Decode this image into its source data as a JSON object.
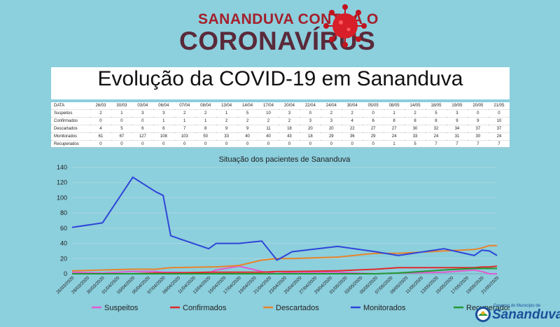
{
  "header": {
    "top_line": "SANANDUVA CONTRA O",
    "main_line": "CORONAVÍRUS",
    "title": "Evolução da COVID-19 em Sananduva"
  },
  "table": {
    "corner": "DATA",
    "dates": [
      "26/03",
      "30/03",
      "03/04",
      "06/04",
      "07/04",
      "08/04",
      "13/04",
      "14/04",
      "17/04",
      "20/04",
      "22/04",
      "24/04",
      "30/04",
      "05/05",
      "08/05",
      "14/05",
      "18/05",
      "19/05",
      "20/05",
      "21/05"
    ],
    "rows": [
      {
        "label": "Suspeitos",
        "values": [
          2,
          1,
          3,
          3,
          2,
          2,
          1,
          5,
          10,
          3,
          0,
          2,
          2,
          0,
          1,
          2,
          5,
          3,
          0,
          0
        ]
      },
      {
        "label": "Confirmados",
        "values": [
          0,
          0,
          0,
          1,
          1,
          1,
          2,
          2,
          2,
          2,
          3,
          3,
          4,
          6,
          8,
          8,
          8,
          9,
          9,
          10
        ]
      },
      {
        "label": "Descartados",
        "values": [
          4,
          5,
          6,
          6,
          7,
          8,
          9,
          9,
          11,
          18,
          20,
          20,
          22,
          27,
          27,
          30,
          32,
          34,
          37,
          37
        ]
      },
      {
        "label": "Monitorados",
        "values": [
          61,
          67,
          127,
          108,
          103,
          50,
          33,
          40,
          40,
          43,
          18,
          29,
          36,
          29,
          24,
          33,
          24,
          31,
          30,
          24
        ]
      },
      {
        "label": "Recuperados",
        "values": [
          0,
          0,
          0,
          0,
          0,
          0,
          0,
          0,
          0,
          0,
          0,
          0,
          0,
          0,
          1,
          5,
          7,
          7,
          7,
          7
        ]
      }
    ]
  },
  "chart_data": {
    "type": "line",
    "title": "Situação dos pacientes de Sananduva",
    "xlabel": "",
    "ylabel": "",
    "ylim": [
      0,
      140
    ],
    "yticks": [
      0,
      20,
      40,
      60,
      80,
      100,
      120,
      140
    ],
    "x_range": [
      "26/03/2020",
      "21/05/2020"
    ],
    "x_ticks": [
      "26/03/2020",
      "28/03/2020",
      "30/03/2020",
      "01/04/2020",
      "03/04/2020",
      "05/04/2020",
      "07/04/2020",
      "09/04/2020",
      "11/04/2020",
      "13/04/2020",
      "15/04/2020",
      "17/04/2020",
      "19/04/2020",
      "21/04/2020",
      "23/04/2020",
      "25/04/2020",
      "27/04/2020",
      "29/04/2020",
      "01/05/2020",
      "03/05/2020",
      "05/05/2020",
      "07/05/2020",
      "09/05/2020",
      "11/05/2020",
      "13/05/2020",
      "15/05/2020",
      "17/05/2020",
      "19/05/2020",
      "21/05/2020"
    ],
    "grid": true,
    "legend_position": "bottom",
    "series": [
      {
        "name": "Suspeitos",
        "color": "#e05bd0",
        "points": [
          [
            "26/03/2020",
            2
          ],
          [
            "30/03/2020",
            1
          ],
          [
            "03/04/2020",
            3
          ],
          [
            "06/04/2020",
            3
          ],
          [
            "07/04/2020",
            2
          ],
          [
            "08/04/2020",
            2
          ],
          [
            "13/04/2020",
            1
          ],
          [
            "14/04/2020",
            5
          ],
          [
            "17/04/2020",
            10
          ],
          [
            "20/04/2020",
            3
          ],
          [
            "22/04/2020",
            0
          ],
          [
            "24/04/2020",
            2
          ],
          [
            "30/04/2020",
            2
          ],
          [
            "05/05/2020",
            0
          ],
          [
            "08/05/2020",
            1
          ],
          [
            "14/05/2020",
            2
          ],
          [
            "18/05/2020",
            5
          ],
          [
            "19/05/2020",
            3
          ],
          [
            "20/05/2020",
            0
          ],
          [
            "21/05/2020",
            0
          ]
        ]
      },
      {
        "name": "Confirmados",
        "color": "#e02a2a",
        "points": [
          [
            "26/03/2020",
            0
          ],
          [
            "30/03/2020",
            0
          ],
          [
            "03/04/2020",
            0
          ],
          [
            "06/04/2020",
            1
          ],
          [
            "07/04/2020",
            1
          ],
          [
            "08/04/2020",
            1
          ],
          [
            "13/04/2020",
            2
          ],
          [
            "14/04/2020",
            2
          ],
          [
            "17/04/2020",
            2
          ],
          [
            "20/04/2020",
            2
          ],
          [
            "22/04/2020",
            3
          ],
          [
            "24/04/2020",
            3
          ],
          [
            "30/04/2020",
            4
          ],
          [
            "05/05/2020",
            6
          ],
          [
            "08/05/2020",
            8
          ],
          [
            "14/05/2020",
            8
          ],
          [
            "18/05/2020",
            8
          ],
          [
            "19/05/2020",
            9
          ],
          [
            "20/05/2020",
            9
          ],
          [
            "21/05/2020",
            10
          ]
        ]
      },
      {
        "name": "Descartados",
        "color": "#e8842a",
        "points": [
          [
            "26/03/2020",
            4
          ],
          [
            "30/03/2020",
            5
          ],
          [
            "03/04/2020",
            6
          ],
          [
            "06/04/2020",
            6
          ],
          [
            "07/04/2020",
            7
          ],
          [
            "08/04/2020",
            8
          ],
          [
            "13/04/2020",
            9
          ],
          [
            "14/04/2020",
            9
          ],
          [
            "17/04/2020",
            11
          ],
          [
            "20/04/2020",
            18
          ],
          [
            "22/04/2020",
            20
          ],
          [
            "24/04/2020",
            20
          ],
          [
            "30/04/2020",
            22
          ],
          [
            "05/05/2020",
            27
          ],
          [
            "08/05/2020",
            27
          ],
          [
            "14/05/2020",
            30
          ],
          [
            "18/05/2020",
            32
          ],
          [
            "19/05/2020",
            34
          ],
          [
            "20/05/2020",
            37
          ],
          [
            "21/05/2020",
            37
          ]
        ]
      },
      {
        "name": "Monitorados",
        "color": "#2f45d8",
        "points": [
          [
            "26/03/2020",
            61
          ],
          [
            "30/03/2020",
            67
          ],
          [
            "03/04/2020",
            127
          ],
          [
            "06/04/2020",
            108
          ],
          [
            "07/04/2020",
            103
          ],
          [
            "08/04/2020",
            50
          ],
          [
            "13/04/2020",
            33
          ],
          [
            "14/04/2020",
            40
          ],
          [
            "17/04/2020",
            40
          ],
          [
            "20/04/2020",
            43
          ],
          [
            "22/04/2020",
            18
          ],
          [
            "24/04/2020",
            29
          ],
          [
            "30/04/2020",
            36
          ],
          [
            "05/05/2020",
            29
          ],
          [
            "08/05/2020",
            24
          ],
          [
            "14/05/2020",
            33
          ],
          [
            "18/05/2020",
            24
          ],
          [
            "19/05/2020",
            31
          ],
          [
            "20/05/2020",
            30
          ],
          [
            "21/05/2020",
            24
          ]
        ]
      },
      {
        "name": "Recuperados",
        "color": "#1f9a32",
        "points": [
          [
            "26/03/2020",
            0
          ],
          [
            "30/03/2020",
            0
          ],
          [
            "03/04/2020",
            0
          ],
          [
            "06/04/2020",
            0
          ],
          [
            "07/04/2020",
            0
          ],
          [
            "08/04/2020",
            0
          ],
          [
            "13/04/2020",
            0
          ],
          [
            "14/04/2020",
            0
          ],
          [
            "17/04/2020",
            0
          ],
          [
            "20/04/2020",
            0
          ],
          [
            "22/04/2020",
            0
          ],
          [
            "24/04/2020",
            0
          ],
          [
            "30/04/2020",
            0
          ],
          [
            "05/05/2020",
            0
          ],
          [
            "08/05/2020",
            1
          ],
          [
            "14/05/2020",
            5
          ],
          [
            "18/05/2020",
            7
          ],
          [
            "19/05/2020",
            7
          ],
          [
            "20/05/2020",
            7
          ],
          [
            "21/05/2020",
            7
          ]
        ]
      }
    ]
  },
  "footer": {
    "logo_small": "Governo do Município de",
    "logo_big": "Sananduva"
  },
  "colors": {
    "background": "#8ccfdd",
    "brand_red": "#a3202b",
    "brand_dark": "#5a2a3a",
    "logo_blue": "#1b4f9a"
  }
}
